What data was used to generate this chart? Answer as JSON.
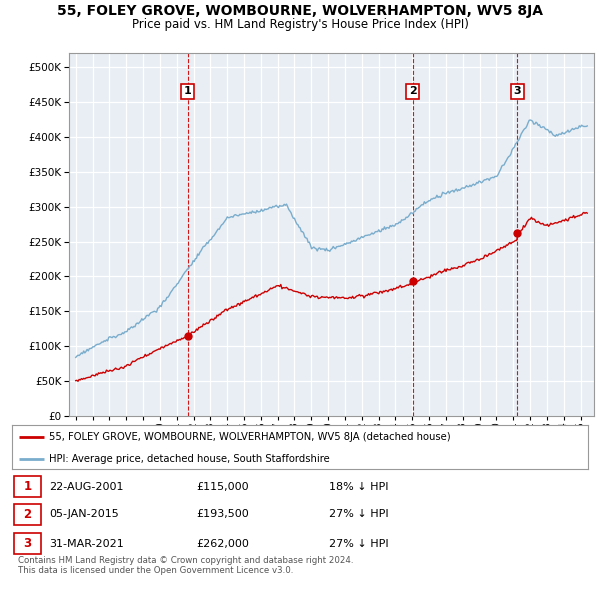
{
  "title": "55, FOLEY GROVE, WOMBOURNE, WOLVERHAMPTON, WV5 8JA",
  "subtitle": "Price paid vs. HM Land Registry's House Price Index (HPI)",
  "legend_label_red": "55, FOLEY GROVE, WOMBOURNE, WOLVERHAMPTON, WV5 8JA (detached house)",
  "legend_label_blue": "HPI: Average price, detached house, South Staffordshire",
  "transactions": [
    {
      "num": 1,
      "date": "22-AUG-2001",
      "price": 115000,
      "pct": "18%",
      "dir": "↓",
      "year": 2001.65
    },
    {
      "num": 2,
      "date": "05-JAN-2015",
      "price": 193500,
      "pct": "27%",
      "dir": "↓",
      "year": 2015.02
    },
    {
      "num": 3,
      "date": "31-MAR-2021",
      "price": 262000,
      "pct": "27%",
      "dir": "↓",
      "year": 2021.25
    }
  ],
  "footer": "Contains HM Land Registry data © Crown copyright and database right 2024.\nThis data is licensed under the Open Government Licence v3.0.",
  "red_color": "#cc0000",
  "blue_color": "#7aaccc",
  "bg_color": "#f0f4f8",
  "plot_bg": "#e8eef4",
  "grid_color": "#ffffff",
  "ylim": [
    0,
    520000
  ],
  "yticks": [
    0,
    50000,
    100000,
    150000,
    200000,
    250000,
    300000,
    350000,
    400000,
    450000,
    500000
  ],
  "xstart": 1994.6,
  "xend": 2025.8
}
